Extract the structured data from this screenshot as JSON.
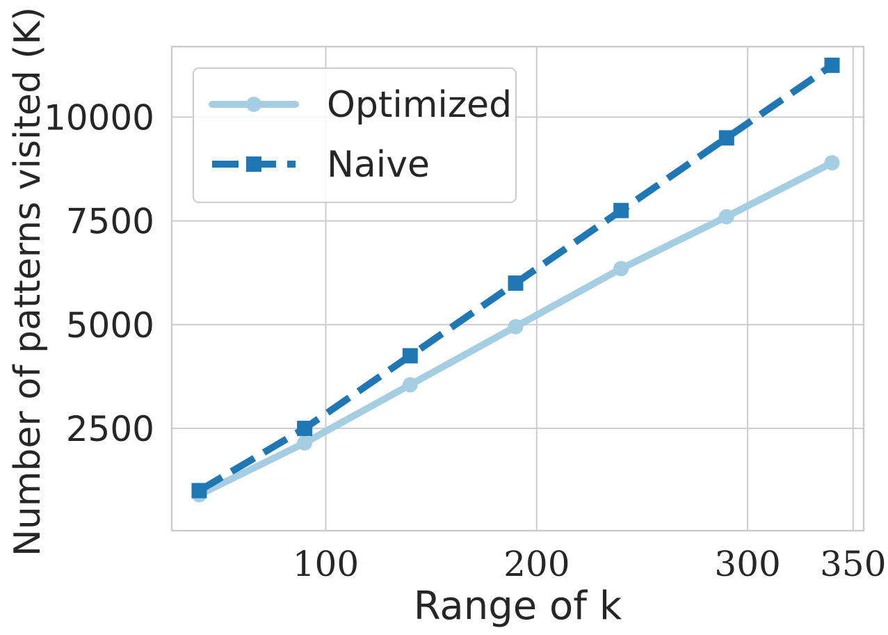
{
  "chart_data": {
    "type": "line",
    "title": "",
    "xlabel": "Range of k",
    "ylabel": "Number of patterns visited (K)",
    "xlim": [
      27,
      355
    ],
    "ylim": [
      35,
      11700
    ],
    "x_ticks": [
      100,
      200,
      300,
      350
    ],
    "x_tick_labels": [
      "100",
      "200",
      "300",
      "350"
    ],
    "y_ticks": [
      2500,
      5000,
      7500,
      10000
    ],
    "y_tick_labels": [
      "2500",
      "5000",
      "7500",
      "10000"
    ],
    "grid": true,
    "legend_position": "top-left",
    "x": [
      40,
      90,
      140,
      190,
      240,
      290,
      340
    ],
    "series": [
      {
        "name": "Optimized",
        "color": "#a6cee3",
        "marker": "circle",
        "line_style": "solid",
        "values": [
          900,
          2150,
          3550,
          4950,
          6350,
          7600,
          8900
        ]
      },
      {
        "name": "Naive",
        "color": "#1f78b4",
        "marker": "square",
        "line_style": "dashed",
        "values": [
          1000,
          2500,
          4250,
          6000,
          7750,
          9500,
          11250
        ]
      }
    ],
    "colors": {
      "grid": "#cccccc",
      "axes": "#cccccc",
      "text": "#262626"
    }
  }
}
